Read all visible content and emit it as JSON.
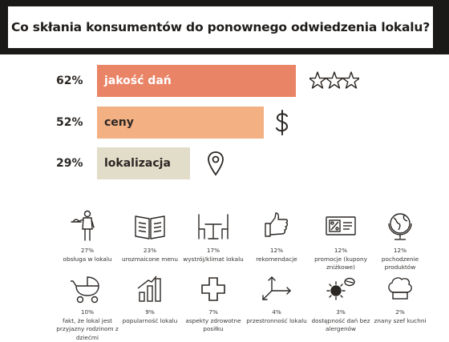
{
  "header": {
    "title": "Co skłania konsumentów do ponownego odwiedzenia lokalu?"
  },
  "colors": {
    "bar1": "#e98467",
    "bar2": "#f3b083",
    "bar3": "#e2ddc9",
    "header_bg": "#1b1918",
    "ink": "#2b2724"
  },
  "chart_data": {
    "type": "bar",
    "orientation": "horizontal",
    "categories": [
      "jakość dań",
      "ceny",
      "lokalizacja"
    ],
    "values": [
      62,
      52,
      29
    ],
    "labels": [
      "62%",
      "52%",
      "29%"
    ],
    "unit": "%",
    "icons": [
      "three-stars-icon",
      "dollar-icon",
      "location-pin-icon"
    ]
  },
  "factors": [
    {
      "pct": "27%",
      "label": "obsługa w lokalu",
      "icon": "waiter-icon"
    },
    {
      "pct": "23%",
      "label": "urozmaicone menu",
      "icon": "menu-book-icon"
    },
    {
      "pct": "17%",
      "label": "wystrój/klimat lokalu",
      "icon": "table-chairs-icon"
    },
    {
      "pct": "12%",
      "label": "rekomendacje",
      "icon": "thumbs-up-icon"
    },
    {
      "pct": "12%",
      "label": "promocje (kupony zniżkowe)",
      "icon": "coupon-icon"
    },
    {
      "pct": "12%",
      "label": "pochodzenie produktów",
      "icon": "globe-icon"
    },
    {
      "pct": "10%",
      "label": "fakt, że lokal jest przyjazny rodzinom z dziećmi",
      "icon": "stroller-icon"
    },
    {
      "pct": "9%",
      "label": "popularność lokalu",
      "icon": "bar-growth-icon"
    },
    {
      "pct": "7%",
      "label": "aspekty zdrowotne posiłku",
      "icon": "health-cross-icon"
    },
    {
      "pct": "4%",
      "label": "przestronność lokalu",
      "icon": "space-arrows-icon"
    },
    {
      "pct": "3%",
      "label": "dostępność dań bez alergenów",
      "icon": "allergen-icon"
    },
    {
      "pct": "2%",
      "label": "znany szef kuchni",
      "icon": "chef-hat-icon"
    }
  ]
}
